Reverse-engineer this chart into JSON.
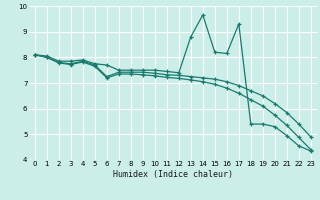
{
  "title": "",
  "xlabel": "Humidex (Indice chaleur)",
  "bg_color": "#cceee8",
  "line_color": "#1a7a6e",
  "grid_color": "#ffffff",
  "xlim": [
    -0.5,
    23.5
  ],
  "ylim": [
    4,
    10
  ],
  "xticks": [
    0,
    1,
    2,
    3,
    4,
    5,
    6,
    7,
    8,
    9,
    10,
    11,
    12,
    13,
    14,
    15,
    16,
    17,
    18,
    19,
    20,
    21,
    22,
    23
  ],
  "yticks": [
    4,
    5,
    6,
    7,
    8,
    9,
    10
  ],
  "series1": [
    8.1,
    8.05,
    7.85,
    7.85,
    7.9,
    7.75,
    7.7,
    7.5,
    7.5,
    7.5,
    7.5,
    7.45,
    7.4,
    8.8,
    9.65,
    8.2,
    8.15,
    9.3,
    5.4,
    5.4,
    5.3,
    4.95,
    4.55,
    4.35
  ],
  "series2": [
    8.1,
    8.0,
    7.8,
    7.75,
    7.85,
    7.7,
    7.25,
    7.42,
    7.42,
    7.42,
    7.38,
    7.32,
    7.3,
    7.25,
    7.2,
    7.15,
    7.05,
    6.9,
    6.7,
    6.5,
    6.2,
    5.85,
    5.4,
    4.9
  ],
  "series3": [
    8.1,
    8.0,
    7.78,
    7.72,
    7.82,
    7.65,
    7.2,
    7.35,
    7.35,
    7.32,
    7.28,
    7.22,
    7.18,
    7.12,
    7.05,
    6.95,
    6.8,
    6.6,
    6.35,
    6.1,
    5.75,
    5.35,
    4.88,
    4.4
  ]
}
